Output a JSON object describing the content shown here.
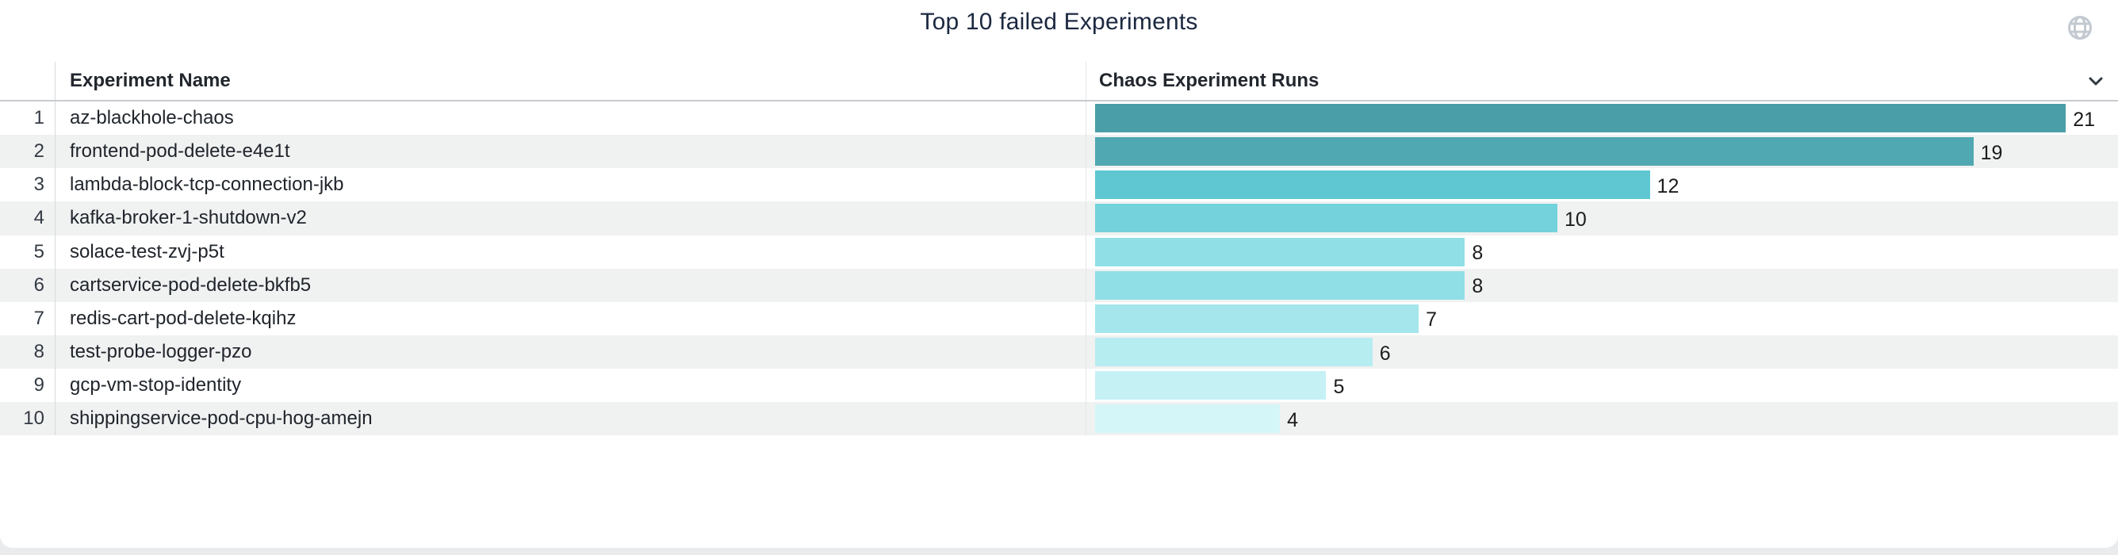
{
  "widget": {
    "title": "Top 10 failed Experiments",
    "globe_icon": "globe-icon",
    "sort_icon": "chevron-down-icon"
  },
  "colors": {
    "title_text": "#1b2840",
    "header_text": "#22272e",
    "row_text": "#20252c",
    "alt_row_bg": "#f0f1f1",
    "page_bg": "#e9ebed",
    "globe_gray": "#c3c9d0",
    "chevron_dark": "#2f3943"
  },
  "table": {
    "columns": {
      "name": "Experiment Name",
      "runs": "Chaos Experiment Runs"
    },
    "rows": [
      {
        "rank": 1,
        "name": "az-blackhole-chaos",
        "runs": 21,
        "bar_color": "#4A9EA8"
      },
      {
        "rank": 2,
        "name": "frontend-pod-delete-e4e1t",
        "runs": 19,
        "bar_color": "#50A9B2"
      },
      {
        "rank": 3,
        "name": "lambda-block-tcp-connection-jkb",
        "runs": 12,
        "bar_color": "#5EC7D2"
      },
      {
        "rank": 4,
        "name": "kafka-broker-1-shutdown-v2",
        "runs": 10,
        "bar_color": "#73D2DC"
      },
      {
        "rank": 5,
        "name": "solace-test-zvj-p5t",
        "runs": 8,
        "bar_color": "#90DFE6"
      },
      {
        "rank": 6,
        "name": "cartservice-pod-delete-bkfb5",
        "runs": 8,
        "bar_color": "#90DFE6"
      },
      {
        "rank": 7,
        "name": "redis-cart-pod-delete-kqihz",
        "runs": 7,
        "bar_color": "#A4E6EC"
      },
      {
        "rank": 8,
        "name": "test-probe-logger-pzo",
        "runs": 6,
        "bar_color": "#B6EDF1"
      },
      {
        "rank": 9,
        "name": "gcp-vm-stop-identity",
        "runs": 5,
        "bar_color": "#C5F1F5"
      },
      {
        "rank": 10,
        "name": "shippingservice-pod-cpu-hog-amejn",
        "runs": 4,
        "bar_color": "#D5F6F9"
      }
    ]
  },
  "chart_data": {
    "type": "bar",
    "orientation": "horizontal",
    "title": "Top 10 failed Experiments",
    "series_label": "Chaos Experiment Runs",
    "categories": [
      "az-blackhole-chaos",
      "frontend-pod-delete-e4e1t",
      "lambda-block-tcp-connection-jkb",
      "kafka-broker-1-shutdown-v2",
      "solace-test-zvj-p5t",
      "cartservice-pod-delete-bkfb5",
      "redis-cart-pod-delete-kqihz",
      "test-probe-logger-pzo",
      "gcp-vm-stop-identity",
      "shippingservice-pod-cpu-hog-amejn"
    ],
    "values": [
      21,
      19,
      12,
      10,
      8,
      8,
      7,
      6,
      5,
      4
    ],
    "value_labels_shown": true,
    "xlim": [
      0,
      21
    ],
    "grid": false,
    "legend": false,
    "color_scale": "teal sequential, darker = higher value"
  }
}
